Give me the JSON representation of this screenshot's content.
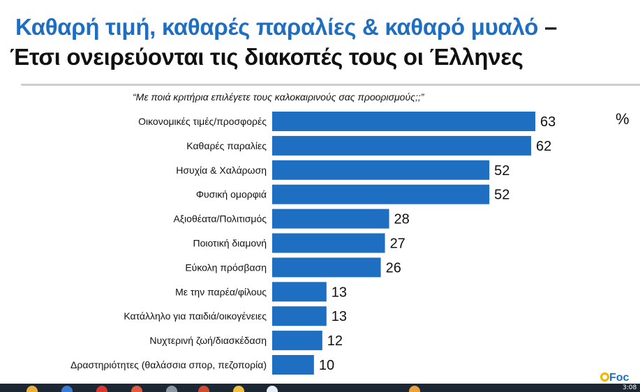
{
  "header": {
    "title_line1_main": "Καθαρή τιμή, καθαρές παραλίες & καθαρό μυαλό",
    "title_line1_dash": "–",
    "title_line2": "Έτσι ονειρεύονται τις διακοπές τους οι Έλληνες"
  },
  "chart_data": {
    "type": "bar",
    "orientation": "horizontal",
    "subtitle": "“Με ποιά κριτήρια επιλέγετε τους καλοκαιρινούς σας προορισμούς;;”",
    "unit_label": "%",
    "categories": [
      "Οικονομικές τιμές/προσφορές",
      "Καθαρές παραλίες",
      "Ησυχία & Χαλάρωση",
      "Φυσική ομορφιά",
      "Αξιοθέατα/Πολιτισμός",
      "Ποιοτική διαμονή",
      "Εύκολη πρόσβαση",
      "Με την παρέα/φίλους",
      "Κατάλληλο για παιδιά/οικογένειες",
      "Νυχτερινή ζωή/διασκέδαση",
      "Δραστηριότητες (θαλάσσια σπορ, πεζοπορία)"
    ],
    "values": [
      63,
      62,
      52,
      52,
      28,
      27,
      26,
      13,
      13,
      12,
      10
    ],
    "xlim": [
      0,
      63
    ],
    "bar_color": "#1e6fc1",
    "grid": false,
    "legend": "none"
  },
  "footer": {
    "logo_text": "Foc",
    "clock_text": "3:08"
  }
}
